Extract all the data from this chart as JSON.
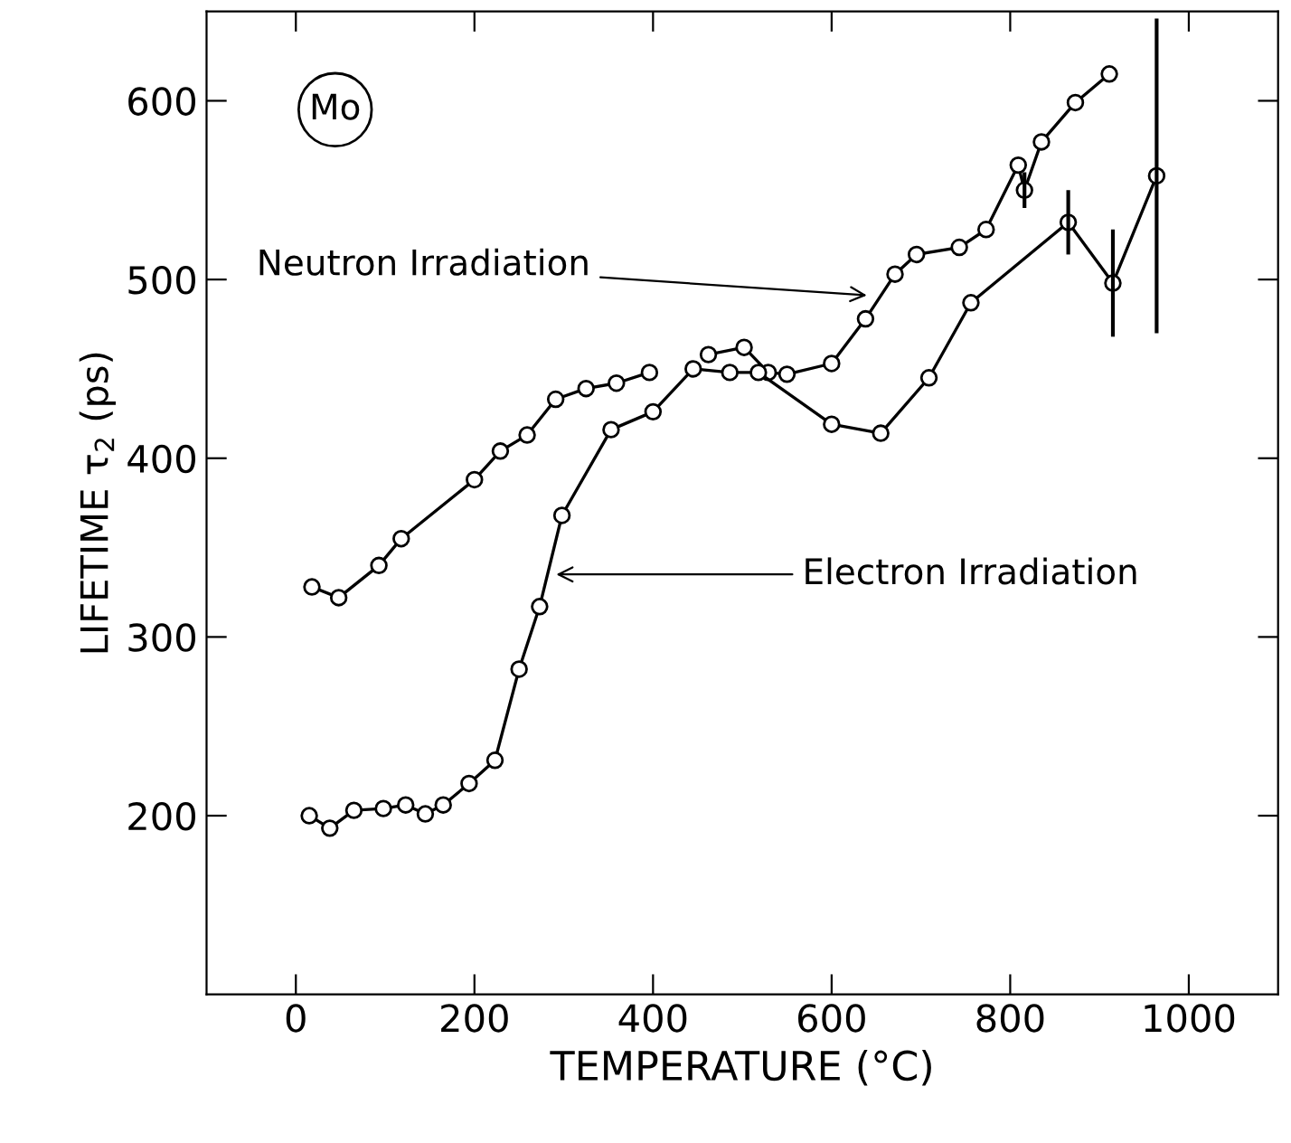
{
  "chart_data": {
    "type": "line",
    "xlabel": "TEMPERATURE (°C)",
    "ylabel": "LIFETIME τ$_{2}$ (ps)",
    "xlim": [
      -100,
      1100
    ],
    "ylim": [
      100,
      650
    ],
    "xticks": [
      0,
      200,
      400,
      600,
      800,
      1000
    ],
    "yticks": [
      200,
      300,
      400,
      500,
      600
    ],
    "marker": "circle",
    "line_style": "solid",
    "grid": false,
    "series": [
      {
        "color": "#000000",
        "x": [
          18,
          48,
          93,
          118,
          200,
          229,
          259,
          291,
          325,
          359,
          396,
          436,
          462,
          502,
          529,
          550,
          600,
          638,
          671,
          695,
          743,
          773,
          809,
          816,
          835,
          873,
          911
        ],
        "values": [
          328,
          322,
          340,
          355,
          388,
          404,
          413,
          433,
          439,
          442,
          448,
          null,
          458,
          462,
          448,
          447,
          453,
          478,
          503,
          514,
          518,
          528,
          564,
          550,
          577,
          599,
          615
        ],
        "errors": [
          null,
          null,
          null,
          null,
          null,
          null,
          null,
          null,
          null,
          null,
          null,
          null,
          null,
          null,
          null,
          null,
          null,
          null,
          null,
          null,
          null,
          null,
          null,
          10,
          null,
          null,
          null
        ]
      },
      {
        "color": "#000000",
        "x": [
          15,
          38,
          65,
          98,
          123,
          145,
          165,
          194,
          223,
          250,
          273,
          298,
          353,
          400,
          445,
          486,
          518,
          600,
          655,
          709,
          756,
          865,
          915,
          964
        ],
        "values": [
          200,
          193,
          203,
          204,
          206,
          201,
          206,
          218,
          231,
          282,
          317,
          368,
          416,
          426,
          450,
          448,
          448,
          419,
          414,
          445,
          487,
          532,
          498,
          558
        ],
        "errors": [
          null,
          null,
          null,
          null,
          null,
          null,
          null,
          null,
          null,
          null,
          null,
          null,
          null,
          null,
          null,
          null,
          null,
          null,
          null,
          null,
          null,
          18,
          30,
          88
        ]
      }
    ],
    "annotations": [
      {
        "text": "Neutron Irradiation",
        "x": 645,
        "y": 491
      },
      {
        "text": "Electron Irradiation",
        "x": 286,
        "y": 335
      },
      "Mo"
    ]
  }
}
